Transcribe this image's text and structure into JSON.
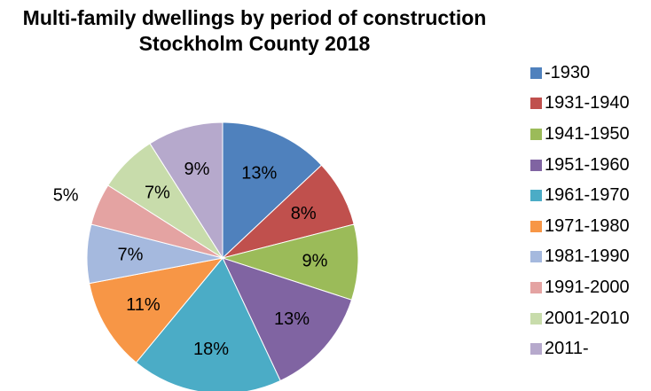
{
  "chart_data": {
    "type": "pie",
    "title": [
      "Multi-family dwellings by period of construction",
      "Stockholm County 2018"
    ],
    "categories": [
      "-1930",
      "1931-1940",
      "1941-1950",
      "1951-1960",
      "1961-1970",
      "1971-1980",
      "1981-1990",
      "1991-2000",
      "2001-2010",
      "2011-"
    ],
    "values": [
      13,
      8,
      9,
      13,
      18,
      11,
      7,
      5,
      7,
      9
    ],
    "labels": [
      "13%",
      "8%",
      "9%",
      "13%",
      "18%",
      "11%",
      "7%",
      "5%",
      "7%",
      "9%"
    ],
    "colors": [
      "#4f81bd",
      "#c0504d",
      "#9bbb59",
      "#8064a2",
      "#4bacc6",
      "#f79646",
      "#a5b9de",
      "#e4a3a2",
      "#c8dcab",
      "#b6a9cc"
    ],
    "legend_position": "right"
  }
}
